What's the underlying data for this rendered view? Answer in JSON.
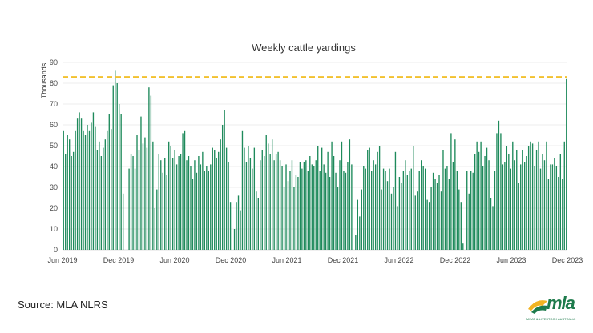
{
  "chart_data": {
    "type": "bar",
    "title": "Weekly cattle yardings",
    "ylabel": "Thousands",
    "xlabel": "",
    "ylim": [
      0,
      90
    ],
    "yticks": [
      0,
      10,
      20,
      30,
      40,
      50,
      60,
      70,
      80,
      90
    ],
    "xtick_labels": [
      "Jun 2019",
      "Dec 2019",
      "Jun 2020",
      "Dec 2020",
      "Jun 2021",
      "Dec 2021",
      "Jun 2022",
      "Dec 2022",
      "Jun 2023",
      "Dec 2023"
    ],
    "reference_line": {
      "value": 83,
      "style": "dashed",
      "color": "#f2c12e"
    },
    "colors": {
      "bar": "#1e8a5b",
      "reference": "#f2c12e",
      "grid": "#d9d9d9"
    },
    "grid": true,
    "values": [
      57,
      46,
      55,
      53,
      45,
      47,
      57,
      63,
      66,
      63,
      57,
      55,
      60,
      57,
      61,
      66,
      59,
      48,
      52,
      45,
      49,
      53,
      57,
      65,
      58,
      79,
      86,
      80,
      70,
      65,
      27,
      0,
      0,
      39,
      46,
      45,
      39,
      55,
      48,
      64,
      51,
      54,
      49,
      78,
      74,
      52,
      20,
      29,
      46,
      43,
      37,
      44,
      36,
      52,
      50,
      44,
      48,
      41,
      45,
      46,
      56,
      57,
      43,
      45,
      40,
      34,
      43,
      37,
      45,
      41,
      47,
      38,
      40,
      38,
      41,
      49,
      48,
      44,
      47,
      53,
      60,
      67,
      49,
      42,
      23,
      0,
      10,
      23,
      26,
      19,
      57,
      49,
      42,
      50,
      44,
      39,
      49,
      28,
      25,
      43,
      48,
      45,
      55,
      51,
      46,
      53,
      43,
      46,
      47,
      43,
      40,
      30,
      41,
      33,
      38,
      43,
      30,
      36,
      35,
      42,
      39,
      42,
      43,
      38,
      45,
      41,
      40,
      43,
      50,
      38,
      49,
      41,
      37,
      47,
      35,
      52,
      45,
      37,
      30,
      43,
      52,
      38,
      37,
      42,
      53,
      41,
      0,
      7,
      24,
      16,
      29,
      40,
      39,
      48,
      49,
      38,
      43,
      41,
      47,
      50,
      29,
      39,
      38,
      33,
      39,
      27,
      30,
      47,
      21,
      35,
      32,
      38,
      43,
      36,
      38,
      39,
      50,
      26,
      28,
      38,
      43,
      40,
      39,
      24,
      23,
      30,
      37,
      34,
      32,
      36,
      28,
      48,
      39,
      40,
      34,
      56,
      42,
      53,
      38,
      29,
      23,
      3,
      0,
      38,
      27,
      38,
      37,
      46,
      52,
      47,
      52,
      40,
      45,
      49,
      43,
      25,
      21,
      38,
      56,
      62,
      56,
      41,
      42,
      50,
      46,
      39,
      52,
      43,
      48,
      32,
      41,
      48,
      42,
      45,
      50,
      52,
      51,
      40,
      48,
      52,
      39,
      46,
      43,
      52,
      34,
      41,
      41,
      44,
      40,
      35,
      46,
      34,
      52,
      82
    ]
  },
  "source": "Source: MLA NLRS",
  "logo": {
    "word": "mla",
    "tagline": "MEAT & LIVESTOCK AUSTRALIA"
  }
}
